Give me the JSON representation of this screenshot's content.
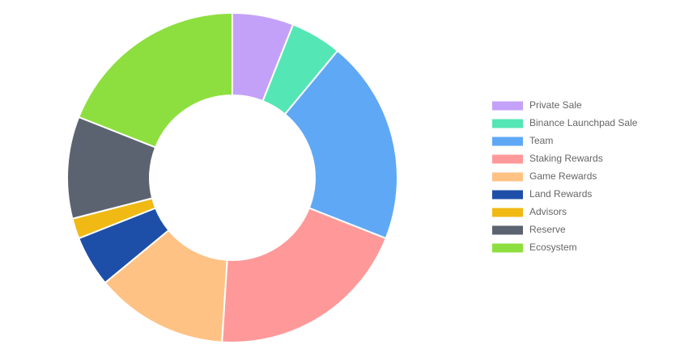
{
  "chart_data": {
    "type": "doughnut",
    "categories": [
      "Private Sale",
      "Binance Launchpad Sale",
      "Team",
      "Staking Rewards",
      "Game Rewards",
      "Land Rewards",
      "Advisors",
      "Reserve",
      "Ecosystem"
    ],
    "values": [
      6,
      5,
      20,
      20,
      13,
      5,
      2,
      10,
      19
    ],
    "colors": [
      "#c4a1f8",
      "#55e6b5",
      "#5fa8f5",
      "#ff9999",
      "#ffc285",
      "#1d4fa8",
      "#f0b914",
      "#5c6370",
      "#8ddf3f"
    ],
    "legend": "right"
  }
}
